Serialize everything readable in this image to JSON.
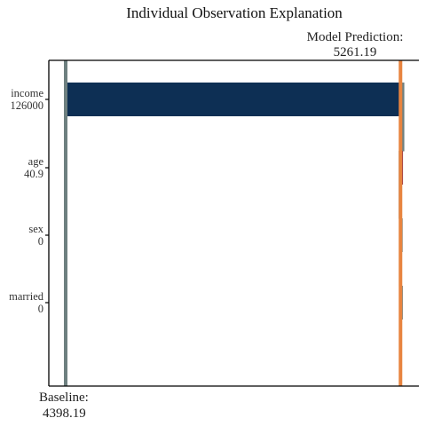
{
  "chart_data": {
    "type": "bar",
    "title": "Individual Observation Explanation",
    "xlim": [
      4398.19,
      5272.0
    ],
    "baseline": {
      "label": "Baseline:",
      "value": "4398.19",
      "x": 4398.19
    },
    "prediction": {
      "label": "Model Prediction:",
      "value": "5261.19",
      "x": 5261.19
    },
    "features": [
      {
        "name": "income",
        "value": "126000",
        "start": 4398.19,
        "end": 5267.6,
        "color": "#0d2f54"
      },
      {
        "name": "age",
        "value": "40.9",
        "start": 5267.6,
        "end": 5260.0,
        "color": "#973344"
      },
      {
        "name": "sex",
        "value": "0",
        "start": 5260.0,
        "end": 5260.5,
        "color": "#7a8a8a"
      },
      {
        "name": "married",
        "value": "0",
        "start": 5260.5,
        "end": 5261.19,
        "color": "#7a8a8a"
      }
    ],
    "colors": {
      "connector": "#6e8080",
      "prediction_line": "#e8843f",
      "axis": "#000000"
    }
  }
}
